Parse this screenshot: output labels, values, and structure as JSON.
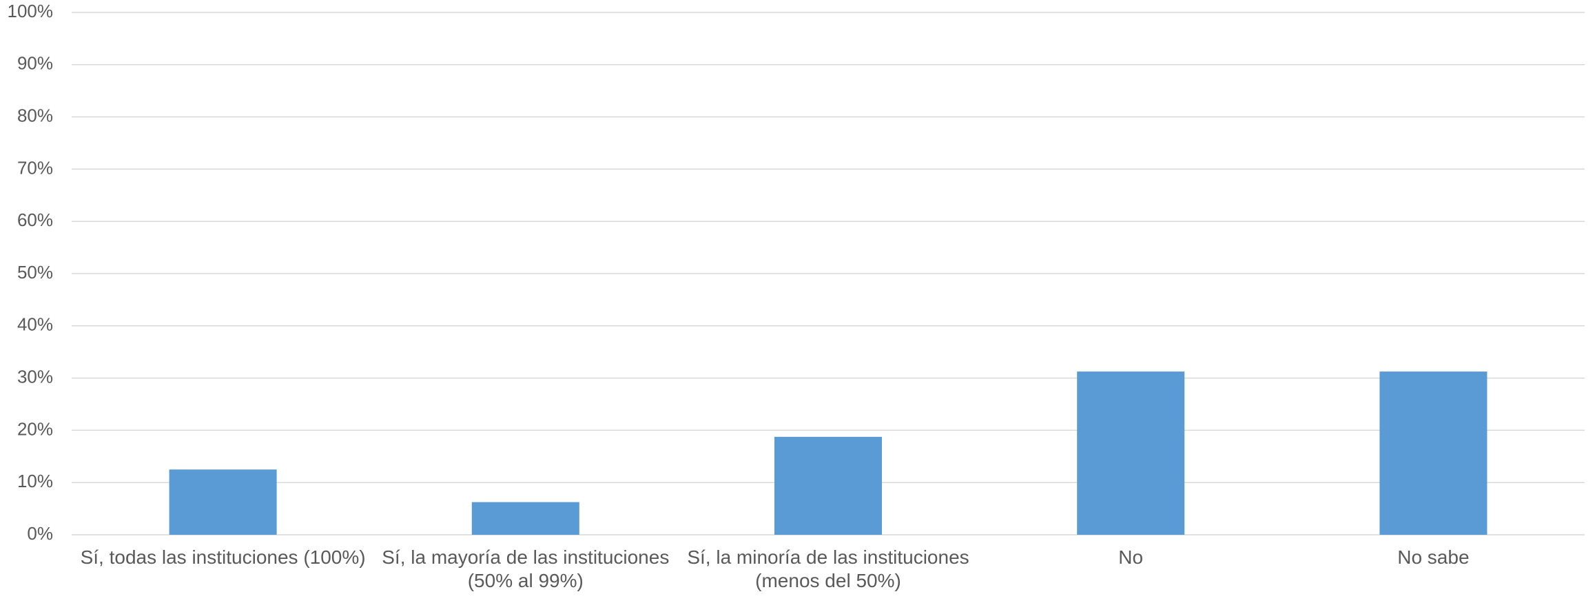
{
  "chart_data": {
    "type": "bar",
    "categories": [
      "Sí, todas las instituciones (100%)",
      "Sí, la mayoría de las instituciones\n(50% al 99%)",
      "Sí, la minoría de las instituciones\n(menos del 50%)",
      "No",
      "No sabe"
    ],
    "values": [
      12.5,
      6.25,
      18.75,
      31.25,
      31.25
    ],
    "color": "#5b9bd5",
    "ylim": [
      0,
      100
    ],
    "yticks": [
      {
        "value": 0,
        "label": "0%"
      },
      {
        "value": 10,
        "label": "10%"
      },
      {
        "value": 20,
        "label": "20%"
      },
      {
        "value": 30,
        "label": "30%"
      },
      {
        "value": 40,
        "label": "40%"
      },
      {
        "value": 50,
        "label": "50%"
      },
      {
        "value": 60,
        "label": "60%"
      },
      {
        "value": 70,
        "label": "70%"
      },
      {
        "value": 80,
        "label": "80%"
      },
      {
        "value": 90,
        "label": "90%"
      },
      {
        "value": 100,
        "label": "100%"
      }
    ],
    "grid": true
  }
}
